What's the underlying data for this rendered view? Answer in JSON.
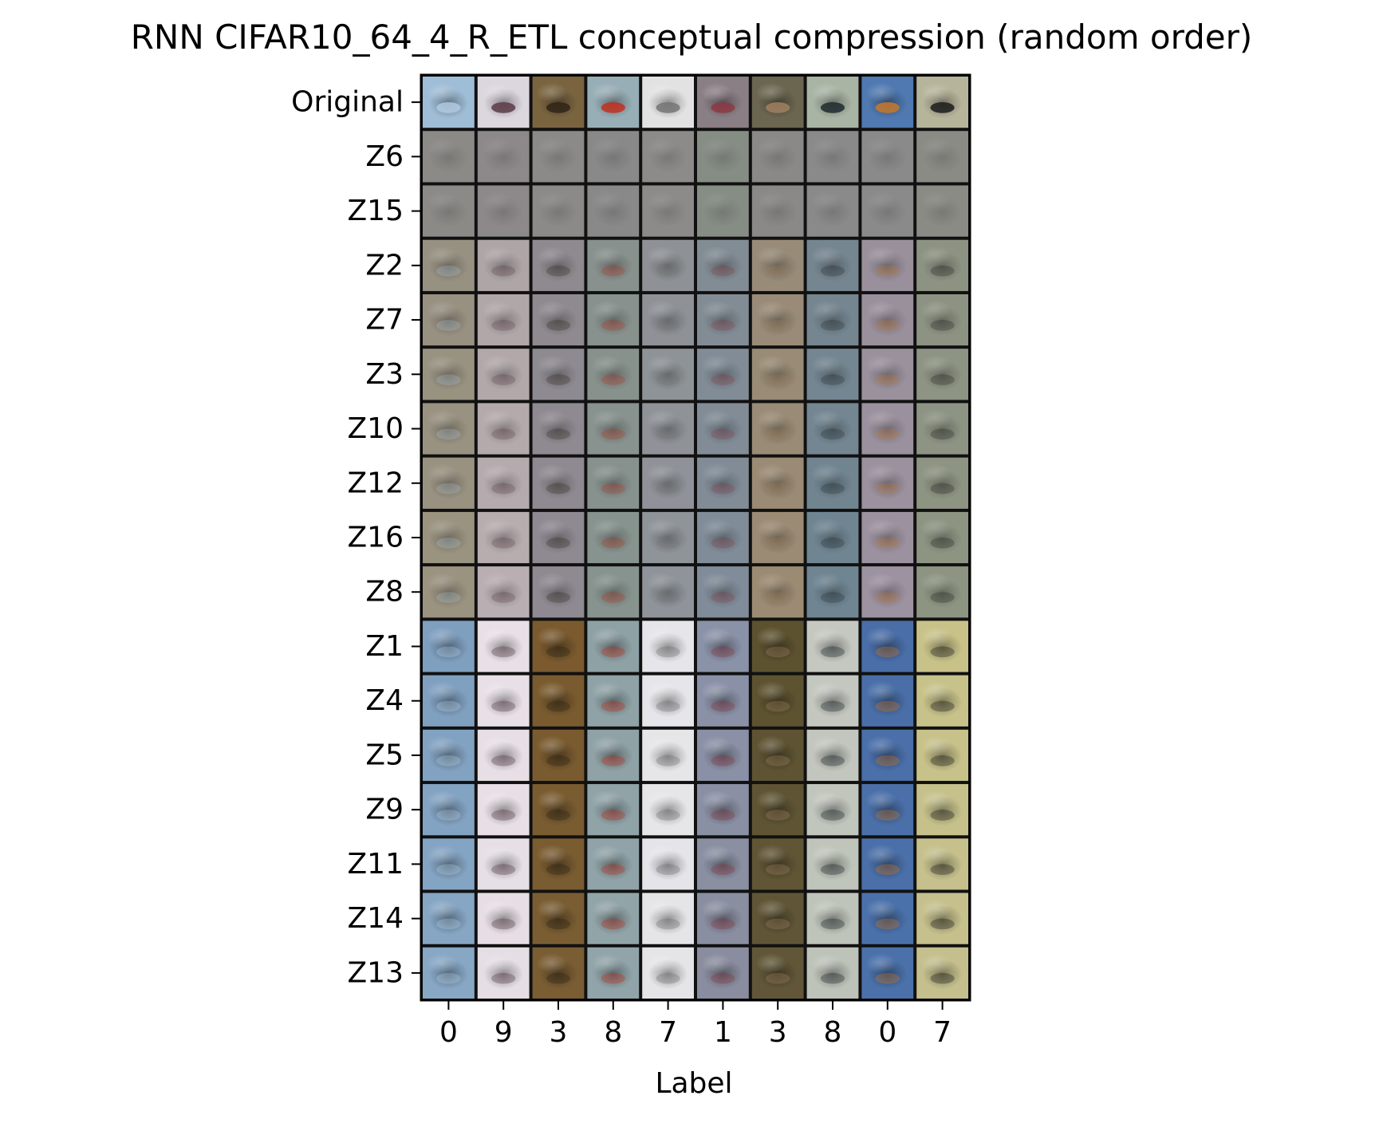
{
  "chart_data": {
    "type": "heatmap",
    "title": "RNN CIFAR10_64_4_R_ETL conceptual compression (random order)",
    "xlabel": "Label",
    "ylabel": "",
    "x_tick_labels": [
      "0",
      "9",
      "3",
      "8",
      "7",
      "1",
      "3",
      "8",
      "0",
      "7"
    ],
    "y_tick_labels": [
      "Original",
      "Z6",
      "Z15",
      "Z2",
      "Z7",
      "Z3",
      "Z10",
      "Z12",
      "Z16",
      "Z8",
      "Z1",
      "Z4",
      "Z5",
      "Z9",
      "Z11",
      "Z14",
      "Z13"
    ],
    "grid": "image grid of 17 rows x 10 columns; each cell is a small image reconstruction",
    "column_palette": {
      "gray": [
        "#8c8a87",
        "#8d8889",
        "#8b8a88",
        "#8a898a",
        "#8c8b8a",
        "#868d85",
        "#8a8987",
        "#8a8a8b",
        "#8b8a8b",
        "#8b8b86"
      ],
      "mid": [
        "#9a9380",
        "#b9aeb1",
        "#8f8a92",
        "#87938e",
        "#8f949a",
        "#808c99",
        "#9c8b73",
        "#6f8592",
        "#9d92a0",
        "#8d9582"
      ],
      "full": [
        "#7f9fbf",
        "#e8e0e6",
        "#7a5a2e",
        "#8ea1a5",
        "#e6e6ea",
        "#8a92a8",
        "#5d5230",
        "#c4c8c0",
        "#4a6ea8",
        "#c8c289"
      ],
      "original": [
        "#9fbdd6",
        "#dcd6de",
        "#7a6440",
        "#98aeb6",
        "#e2e2e2",
        "#8a7f85",
        "#6b6650",
        "#a8b4a4",
        "#4f79b0",
        "#b6b49a"
      ],
      "accent": [
        "#b2cae0",
        "#5a3b48",
        "#2f2418",
        "#c23020",
        "#767676",
        "#8c3a44",
        "#a08060",
        "#1f2a2e",
        "#c8782a",
        "#1c1c1c"
      ]
    }
  }
}
